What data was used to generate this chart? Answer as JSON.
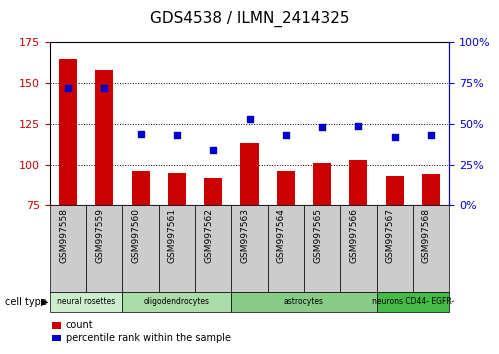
{
  "title": "GDS4538 / ILMN_2414325",
  "samples": [
    "GSM997558",
    "GSM997559",
    "GSM997560",
    "GSM997561",
    "GSM997562",
    "GSM997563",
    "GSM997564",
    "GSM997565",
    "GSM997566",
    "GSM997567",
    "GSM997568"
  ],
  "counts": [
    165,
    158,
    96,
    95,
    92,
    113,
    96,
    101,
    103,
    93,
    94
  ],
  "percentile_ranks": [
    72,
    72,
    44,
    43,
    34,
    53,
    43,
    48,
    49,
    42,
    43
  ],
  "bar_color": "#cc0000",
  "dot_color": "#0000cc",
  "ylim_left": [
    75,
    175
  ],
  "ylim_right": [
    0,
    100
  ],
  "yticks_left": [
    75,
    100,
    125,
    150,
    175
  ],
  "yticks_right": [
    0,
    25,
    50,
    75,
    100
  ],
  "cell_types": [
    {
      "label": "neural rosettes",
      "start": 0,
      "end": 2,
      "color": "#cceecc"
    },
    {
      "label": "oligodendrocytes",
      "start": 2,
      "end": 5,
      "color": "#aaddaa"
    },
    {
      "label": "astrocytes",
      "start": 5,
      "end": 9,
      "color": "#88cc88"
    },
    {
      "label": "neurons CD44- EGFR-",
      "start": 9,
      "end": 11,
      "color": "#44bb44"
    }
  ],
  "cell_type_label": "cell type",
  "legend_count_label": "count",
  "legend_percentile_label": "percentile rank within the sample",
  "tick_area_color": "#cccccc",
  "background_color": "#ffffff"
}
